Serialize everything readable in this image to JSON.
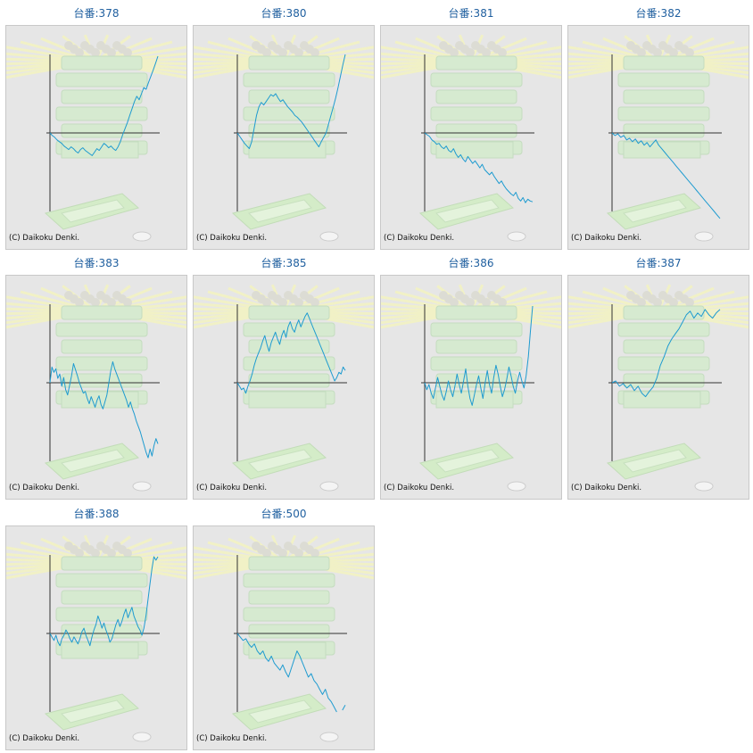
{
  "copyright": "(C) Daikoku Denki.",
  "colors": {
    "line": "#1e9bd0",
    "axis": "#333333",
    "title": "#1f5f9f",
    "panel_bg": "#e6e6e6"
  },
  "chart_data": [
    {
      "type": "line",
      "title": "台番:378",
      "y": [
        0,
        -3,
        -5,
        -8,
        -10,
        -12,
        -15,
        -17,
        -19,
        -16,
        -18,
        -21,
        -23,
        -19,
        -17,
        -20,
        -22,
        -24,
        -26,
        -22,
        -18,
        -20,
        -16,
        -12,
        -14,
        -17,
        -15,
        -18,
        -20,
        -16,
        -10,
        -2,
        5,
        12,
        20,
        28,
        36,
        42,
        38,
        45,
        52,
        50,
        58,
        65,
        72,
        80,
        88
      ]
    },
    {
      "type": "line",
      "title": "台番:380",
      "y": [
        0,
        -4,
        -8,
        -12,
        -15,
        -18,
        -10,
        5,
        20,
        30,
        35,
        32,
        36,
        40,
        44,
        42,
        45,
        40,
        36,
        38,
        34,
        30,
        27,
        24,
        20,
        18,
        15,
        12,
        8,
        4,
        0,
        -4,
        -8,
        -12,
        -16,
        -10,
        -5,
        0,
        10,
        20,
        30,
        40,
        52,
        65,
        78,
        90
      ]
    },
    {
      "type": "line",
      "title": "台番:381",
      "y": [
        0,
        -2,
        -4,
        -8,
        -10,
        -13,
        -12,
        -16,
        -18,
        -15,
        -20,
        -22,
        -18,
        -24,
        -28,
        -25,
        -30,
        -33,
        -27,
        -31,
        -35,
        -32,
        -36,
        -40,
        -36,
        -42,
        -45,
        -48,
        -45,
        -50,
        -54,
        -58,
        -55,
        -60,
        -64,
        -67,
        -70,
        -72,
        -68,
        -75,
        -78,
        -74,
        -80,
        -76,
        -78,
        -79
      ]
    },
    {
      "type": "line",
      "title": "台番:382",
      "y": [
        0,
        -3,
        -1,
        -5,
        -3,
        -8,
        -6,
        -10,
        -7,
        -12,
        -9,
        -14,
        -11,
        -16,
        -12,
        -8,
        -14,
        -18,
        -22,
        -26,
        -30,
        -34,
        -38,
        -42,
        -46,
        -50,
        -54,
        -58,
        -62,
        -66,
        -70,
        -74,
        -78,
        -82,
        -86,
        -90,
        -94,
        -98
      ]
    },
    {
      "type": "line",
      "title": "台番:383",
      "y": [
        0,
        18,
        12,
        16,
        5,
        10,
        -4,
        6,
        -8,
        -14,
        -3,
        8,
        22,
        15,
        8,
        0,
        -6,
        -12,
        -10,
        -18,
        -24,
        -16,
        -22,
        -28,
        -20,
        -15,
        -25,
        -30,
        -22,
        -14,
        0,
        14,
        24,
        16,
        10,
        4,
        -2,
        -8,
        -14,
        -20,
        -28,
        -22,
        -30,
        -36,
        -44,
        -50,
        -56,
        -64,
        -72,
        -80,
        -86,
        -76,
        -84,
        -72,
        -64,
        -70
      ]
    },
    {
      "type": "line",
      "title": "台番:385",
      "y": [
        0,
        -4,
        -8,
        -6,
        -12,
        -4,
        2,
        10,
        20,
        28,
        34,
        40,
        48,
        54,
        44,
        36,
        46,
        52,
        58,
        50,
        44,
        54,
        60,
        52,
        64,
        70,
        62,
        58,
        66,
        72,
        64,
        70,
        76,
        80,
        74,
        68,
        62,
        56,
        50,
        44,
        38,
        32,
        26,
        20,
        14,
        8,
        2,
        6,
        12,
        10,
        18,
        14
      ]
    },
    {
      "type": "line",
      "title": "台番:386",
      "y": [
        0,
        -8,
        -2,
        -12,
        -18,
        -6,
        6,
        -4,
        -14,
        -20,
        -10,
        2,
        -8,
        -16,
        -4,
        10,
        -2,
        -12,
        2,
        16,
        -4,
        -18,
        -26,
        -14,
        -2,
        8,
        -6,
        -18,
        0,
        14,
        -2,
        -12,
        6,
        20,
        10,
        -4,
        -16,
        -8,
        4,
        18,
        8,
        -4,
        -12,
        2,
        12,
        2,
        -6,
        8,
        30,
        60,
        88
      ]
    },
    {
      "type": "line",
      "title": "台番:387",
      "y": [
        0,
        2,
        -4,
        -1,
        -6,
        -2,
        -9,
        -4,
        -12,
        -16,
        -10,
        -5,
        5,
        20,
        30,
        42,
        50,
        56,
        62,
        70,
        78,
        82,
        74,
        80,
        76,
        84,
        78,
        74,
        80,
        84
      ]
    },
    {
      "type": "line",
      "title": "台番:388",
      "y": [
        0,
        -4,
        -8,
        -2,
        -10,
        -14,
        -6,
        -2,
        4,
        0,
        -6,
        -10,
        -4,
        -8,
        -12,
        -6,
        2,
        6,
        -2,
        -8,
        -14,
        -4,
        4,
        10,
        20,
        14,
        6,
        12,
        4,
        -2,
        -10,
        -6,
        2,
        10,
        16,
        8,
        14,
        22,
        28,
        18,
        24,
        30,
        20,
        14,
        8,
        4,
        -2,
        6,
        20,
        38,
        56,
        74,
        88,
        84,
        88
      ]
    },
    {
      "type": "line",
      "title": "台番:500",
      "y": [
        0,
        -4,
        -8,
        -6,
        -12,
        -16,
        -12,
        -20,
        -24,
        -20,
        -28,
        -32,
        -26,
        -34,
        -38,
        -42,
        -36,
        -44,
        -50,
        -40,
        -30,
        -20,
        -26,
        -34,
        -42,
        -50,
        -46,
        -54,
        -58,
        -64,
        -70,
        -64,
        -74,
        -78,
        -84,
        -90,
        null,
        -88,
        -82
      ]
    }
  ]
}
